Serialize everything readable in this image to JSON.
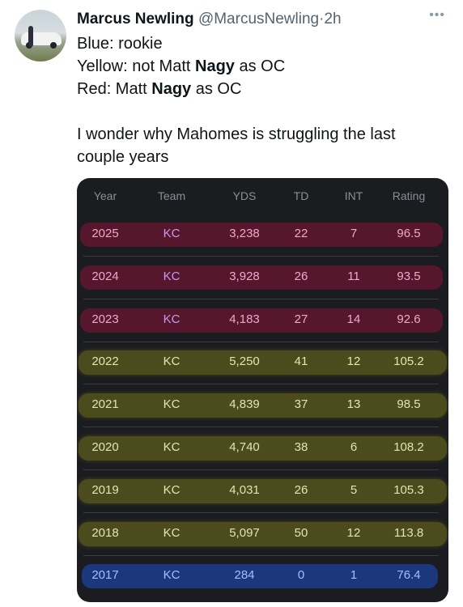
{
  "tweet": {
    "author_name": "Marcus Newling",
    "author_handle": "@MarcusNewling",
    "separator": "·",
    "time": "2h",
    "more_icon": "more-dots-icon",
    "lines": [
      {
        "pre": "Blue: rookie",
        "bold": "",
        "post": ""
      },
      {
        "pre": "Yellow: not Matt ",
        "bold": "Nagy",
        "post": " as OC"
      },
      {
        "pre": "Red: Matt ",
        "bold": "Nagy",
        "post": " as OC"
      },
      {
        "pre": "",
        "bold": "",
        "post": ""
      },
      {
        "pre": "I wonder why Mahomes is struggling the last",
        "bold": "",
        "post": ""
      },
      {
        "pre": "couple years",
        "bold": "",
        "post": ""
      }
    ]
  },
  "table": {
    "headers": {
      "year": "Year",
      "team": "Team",
      "yds": "YDS",
      "td": "TD",
      "int": "INT",
      "rating": "Rating"
    },
    "highlight_colors": {
      "red": "#601630",
      "yellow": "#c8c41e",
      "blue": "#1e50c8"
    },
    "rows": [
      {
        "highlight": "red",
        "year": "2025",
        "team": "KC",
        "yds": "3,238",
        "td": "22",
        "int": "7",
        "rating": "96.5"
      },
      {
        "highlight": "red",
        "year": "2024",
        "team": "KC",
        "yds": "3,928",
        "td": "26",
        "int": "11",
        "rating": "93.5"
      },
      {
        "highlight": "red",
        "year": "2023",
        "team": "KC",
        "yds": "4,183",
        "td": "27",
        "int": "14",
        "rating": "92.6"
      },
      {
        "highlight": "yellow",
        "year": "2022",
        "team": "KC",
        "yds": "5,250",
        "td": "41",
        "int": "12",
        "rating": "105.2"
      },
      {
        "highlight": "yellow",
        "year": "2021",
        "team": "KC",
        "yds": "4,839",
        "td": "37",
        "int": "13",
        "rating": "98.5"
      },
      {
        "highlight": "yellow",
        "year": "2020",
        "team": "KC",
        "yds": "4,740",
        "td": "38",
        "int": "6",
        "rating": "108.2"
      },
      {
        "highlight": "yellow",
        "year": "2019",
        "team": "KC",
        "yds": "4,031",
        "td": "26",
        "int": "5",
        "rating": "105.3"
      },
      {
        "highlight": "yellow",
        "year": "2018",
        "team": "KC",
        "yds": "5,097",
        "td": "50",
        "int": "12",
        "rating": "113.8"
      },
      {
        "highlight": "blue",
        "year": "2017",
        "team": "KC",
        "yds": "284",
        "td": "0",
        "int": "1",
        "rating": "76.4"
      }
    ]
  }
}
